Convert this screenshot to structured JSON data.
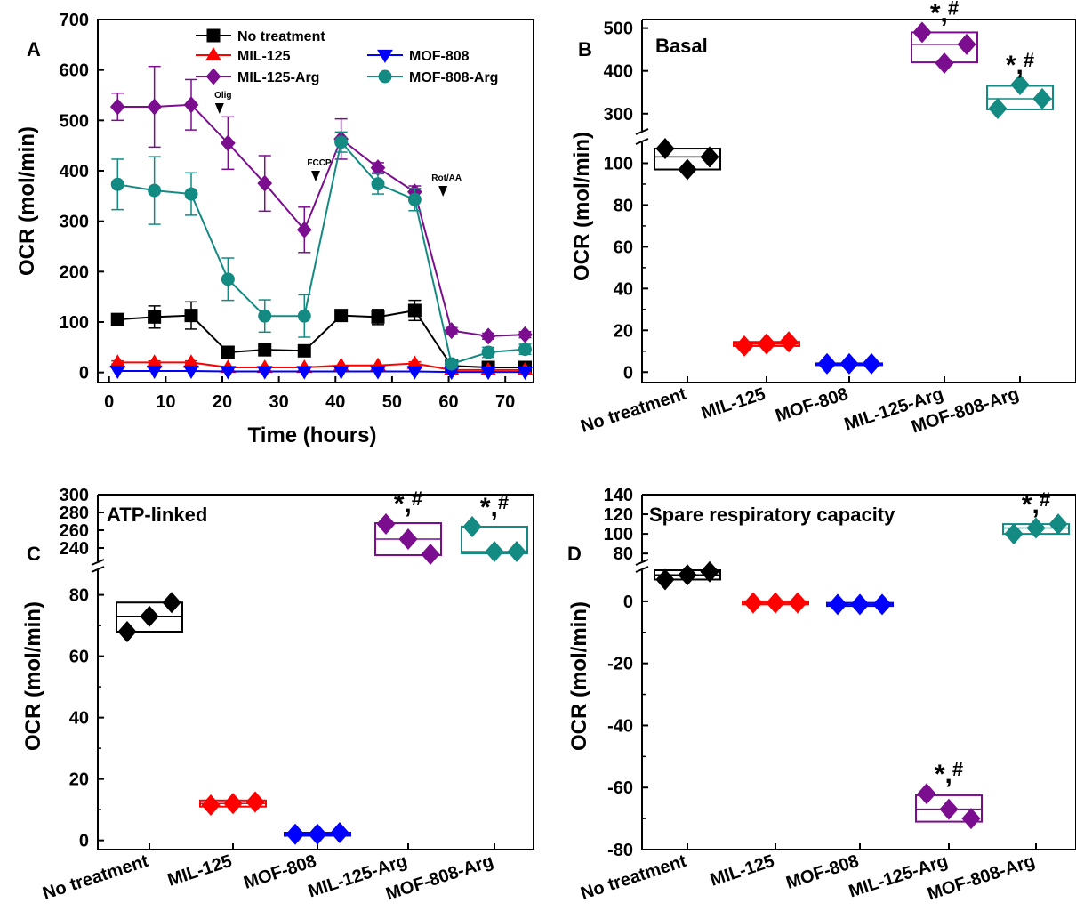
{
  "chart_data": [
    {
      "panel": "A",
      "type": "line",
      "xlabel": "Time (hours)",
      "ylabel": "OCR (mol/min)",
      "xlim": [
        -2,
        75
      ],
      "ylim": [
        -20,
        700
      ],
      "xticks": [
        0,
        10,
        20,
        30,
        40,
        50,
        60,
        70
      ],
      "yticks": [
        0,
        100,
        200,
        300,
        400,
        500,
        600,
        700
      ],
      "legend_position": "top",
      "x": [
        1.5,
        8,
        14.5,
        21,
        27.5,
        34.5,
        41,
        47.5,
        54,
        60.5,
        67,
        73.5
      ],
      "series": [
        {
          "name": "No treatment",
          "color": "#000000",
          "marker": "square",
          "values": [
            105,
            110,
            113,
            40,
            45,
            43,
            113,
            110,
            123,
            13,
            10,
            10
          ],
          "error": [
            8,
            22,
            27,
            8,
            10,
            10,
            8,
            15,
            20,
            3,
            3,
            3
          ]
        },
        {
          "name": "MIL-125",
          "color": "#ff0000",
          "marker": "triangle-up",
          "values": [
            20,
            20,
            20,
            10,
            10,
            10,
            14,
            14,
            18,
            5,
            5,
            5
          ],
          "error": [
            3,
            3,
            3,
            2,
            2,
            2,
            2,
            2,
            3,
            1,
            1,
            1
          ]
        },
        {
          "name": "MOF-808",
          "color": "#0000ff",
          "marker": "triangle-down",
          "values": [
            3,
            3,
            3,
            2,
            2,
            2,
            2,
            2,
            2,
            1,
            1,
            1
          ],
          "error": [
            1,
            1,
            1,
            1,
            1,
            1,
            1,
            1,
            1,
            1,
            1,
            1
          ]
        },
        {
          "name": "MIL-125-Arg",
          "color": "#7b0e8f",
          "marker": "diamond",
          "values": [
            527,
            527,
            531,
            455,
            375,
            283,
            463,
            406,
            358,
            83,
            72,
            75
          ],
          "error": [
            27,
            80,
            50,
            52,
            55,
            45,
            40,
            10,
            12,
            6,
            6,
            6
          ]
        },
        {
          "name": "MOF-808-Arg",
          "color": "#138a82",
          "marker": "circle",
          "values": [
            373,
            361,
            354,
            185,
            112,
            112,
            457,
            374,
            343,
            17,
            40,
            46
          ],
          "error": [
            50,
            67,
            42,
            42,
            32,
            42,
            20,
            20,
            22,
            8,
            10,
            10
          ]
        }
      ],
      "annotations": [
        {
          "label": "Olig",
          "x": 19.5
        },
        {
          "label": "FCCP",
          "x": 36.5
        },
        {
          "label": "Rot/AA",
          "x": 59
        }
      ]
    },
    {
      "panel": "B",
      "type": "scatter",
      "title": "Basal",
      "ylabel": "OCR (mol/min)",
      "categories": [
        "No treatment",
        "MIL-125",
        "MOF-808",
        "MIL-125-Arg",
        "MOF-808-Arg"
      ],
      "colors": [
        "#000000",
        "#ff0000",
        "#0000ff",
        "#7b0e8f",
        "#138a82"
      ],
      "broken_axis": {
        "lower": [
          -5,
          110
        ],
        "upper": [
          260,
          520
        ]
      },
      "yticks_lower": [
        0,
        20,
        40,
        60,
        80,
        100
      ],
      "yticks_upper": [
        300,
        400,
        500
      ],
      "points": [
        [
          107,
          97,
          103
        ],
        [
          12.5,
          13.5,
          14.5
        ],
        [
          4,
          4,
          4
        ],
        [
          490,
          418,
          462
        ],
        [
          312,
          368,
          335
        ]
      ],
      "boxes": [
        [
          97,
          107
        ],
        [
          12.5,
          14.5
        ],
        [
          3.8,
          4.2
        ],
        [
          420,
          490
        ],
        [
          310,
          365
        ]
      ],
      "significance": [
        "",
        "",
        "",
        "*,#",
        "*,#"
      ]
    },
    {
      "panel": "C",
      "type": "scatter",
      "title": "ATP-linked",
      "ylabel": "OCR (mol/min)",
      "categories": [
        "No treatment",
        "MIL-125",
        "MOF-808",
        "MIL-125-Arg",
        "MOF-808-Arg"
      ],
      "colors": [
        "#000000",
        "#ff0000",
        "#0000ff",
        "#7b0e8f",
        "#138a82"
      ],
      "broken_axis": {
        "lower": [
          -3,
          88
        ],
        "upper": [
          225,
          300
        ]
      },
      "yticks_lower": [
        0,
        20,
        40,
        60,
        80
      ],
      "yticks_upper": [
        240,
        260,
        280,
        300
      ],
      "points": [
        [
          68,
          73,
          77.5
        ],
        [
          11.5,
          12,
          12.5
        ],
        [
          2,
          2,
          2.5
        ],
        [
          267,
          250,
          233
        ],
        [
          264,
          236,
          236
        ]
      ],
      "boxes": [
        [
          68,
          77.5
        ],
        [
          11,
          13
        ],
        [
          1.5,
          2.5
        ],
        [
          232,
          268
        ],
        [
          234,
          264
        ]
      ],
      "significance": [
        "",
        "",
        "",
        "*,#",
        "*,#"
      ]
    },
    {
      "panel": "D",
      "type": "scatter",
      "title": "Spare respiratory capacity",
      "ylabel": "OCR (mol/min)",
      "categories": [
        "No treatment",
        "MIL-125",
        "MOF-808",
        "MIL-125-Arg",
        "MOF-808-Arg"
      ],
      "colors": [
        "#000000",
        "#ff0000",
        "#0000ff",
        "#7b0e8f",
        "#138a82"
      ],
      "broken_axis": {
        "lower": [
          -80,
          10
        ],
        "upper": [
          72,
          140
        ]
      },
      "yticks_lower": [
        -80,
        -60,
        -40,
        -20,
        0
      ],
      "yticks_upper": [
        80,
        100,
        120,
        140
      ],
      "points": [
        [
          7,
          8.5,
          9.5
        ],
        [
          -0.5,
          -0.5,
          -0.5
        ],
        [
          -1,
          -1,
          -1
        ],
        [
          -62,
          -67,
          -70
        ],
        [
          100,
          106,
          110
        ]
      ],
      "boxes": [
        [
          7,
          10
        ],
        [
          -1,
          0
        ],
        [
          -1.5,
          -0.5
        ],
        [
          -62.5,
          -71
        ],
        [
          100,
          110
        ]
      ],
      "significance": [
        "",
        "",
        "",
        "*,#",
        "*,#"
      ]
    }
  ]
}
